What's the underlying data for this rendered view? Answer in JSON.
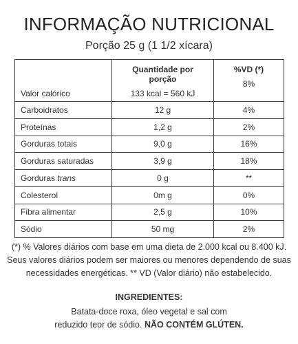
{
  "title": "INFORMAÇÃO NUTRICIONAL",
  "portion": "Porção 25 g (1 1/2 xícara)",
  "table": {
    "header_quantity": "Quantidade por porção",
    "header_vd": "%VD (*)",
    "calories": {
      "label": "Valor calórico",
      "value": "133 kcal = 560 kJ",
      "vd": "8%"
    },
    "rows": [
      {
        "label": "Carboidratos",
        "value": "12 g",
        "vd": "4%"
      },
      {
        "label": "Proteínas",
        "value": "1,2 g",
        "vd": "2%"
      },
      {
        "label": "Gorduras totais",
        "value": "9,0 g",
        "vd": "16%"
      },
      {
        "label": "Gorduras saturadas",
        "value": "3,9 g",
        "vd": "18%"
      },
      {
        "label_prefix": "Gorduras ",
        "label_italic": "trans",
        "value": "0 g",
        "vd": "**"
      },
      {
        "label": "Colesterol",
        "value": "0m g",
        "vd": "0%"
      },
      {
        "label": "Fibra alimentar",
        "value": "2,5 g",
        "vd": "10%"
      },
      {
        "label": "Sódio",
        "value": "50 mg",
        "vd": "2%"
      }
    ]
  },
  "footnote": {
    "line1": "(*) % Valores diários com base em uma dieta de 2.000 kcal ou 8.400 kJ.",
    "line2": "Seus valores diários podem ser maiores ou menores dependendo de suas",
    "line3": "necessidades energéticas. ** VD (Valor diário) não estabelecido."
  },
  "ingredients": {
    "title": "INGREDIENTES:",
    "line1": "Batata-doce roxa, óleo vegetal e sal com",
    "line2_regular": "reduzido teor de sódio. ",
    "line2_bold": "NÃO CONTÉM GLÚTEN."
  }
}
